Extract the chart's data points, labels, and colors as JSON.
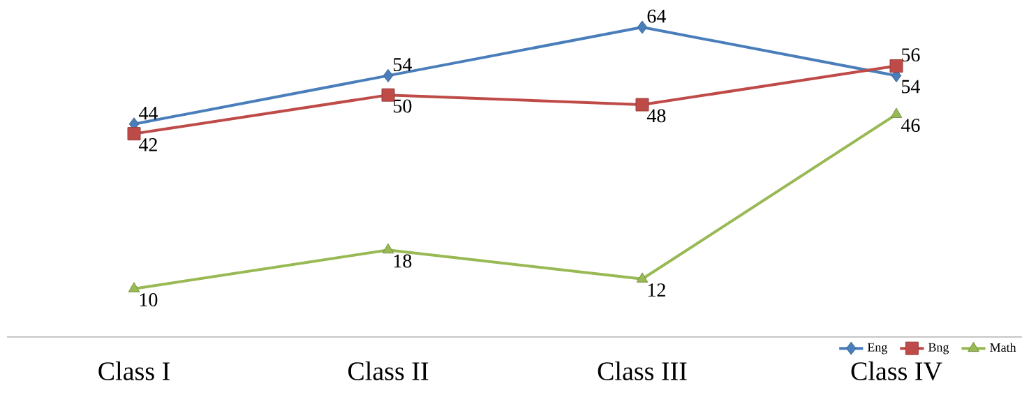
{
  "chart_data": {
    "type": "line",
    "categories": [
      "Class I",
      "Class II",
      "Class III",
      "Class IV"
    ],
    "series": [
      {
        "name": "Eng",
        "color": "#4a7ebb",
        "marker": "diamond",
        "values": [
          44,
          54,
          64,
          54
        ]
      },
      {
        "name": "Bng",
        "color": "#be4b48",
        "marker": "square",
        "values": [
          42,
          50,
          48,
          56
        ]
      },
      {
        "name": "Math",
        "color": "#98b954",
        "marker": "triangle",
        "values": [
          10,
          18,
          12,
          46
        ]
      }
    ],
    "data_labels": true,
    "legend": "bottom right"
  }
}
